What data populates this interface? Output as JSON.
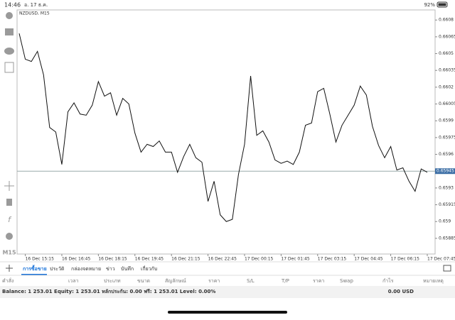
{
  "status_bar": {
    "time": "14:46",
    "date": "อ. 17 ธ.ค.",
    "battery": "92%"
  },
  "toolbar": {
    "timeframe": "M15"
  },
  "chart_data": {
    "type": "line",
    "title": "NZDUSD, M15",
    "color": "#111111",
    "categories": [
      null,
      "16 Dec 15:15",
      null,
      null,
      null,
      null,
      null,
      "16 Dec 16:45",
      null,
      null,
      null,
      null,
      null,
      "16 Dec 18:15",
      null,
      null,
      null,
      null,
      null,
      "16 Dec 19:45",
      null,
      null,
      null,
      null,
      null,
      "16 Dec 21:15",
      null,
      null,
      null,
      null,
      null,
      "16 Dec 22:45",
      null,
      null,
      null,
      null,
      null,
      "17 Dec 00:15",
      null,
      null,
      null,
      null,
      null,
      "17 Dec 01:45",
      null,
      null,
      null,
      null,
      null,
      "17 Dec 03:15",
      null,
      null,
      null,
      null,
      null,
      "17 Dec 04:45",
      null,
      null,
      null,
      null,
      null,
      "17 Dec 06:15",
      null,
      null,
      null,
      null,
      null,
      "17 Dec 07:45"
    ],
    "values": [
      0.66068,
      0.66045,
      0.66043,
      0.66052,
      0.66031,
      0.65984,
      0.6598,
      0.65951,
      0.65998,
      0.66006,
      0.65996,
      0.65995,
      0.66004,
      0.66025,
      0.66012,
      0.66015,
      0.65995,
      0.6601,
      0.66005,
      0.65979,
      0.65962,
      0.65969,
      0.65967,
      0.65972,
      0.65962,
      0.65962,
      0.65944,
      0.65958,
      0.65969,
      0.65957,
      0.65953,
      0.65918,
      0.65936,
      0.65906,
      0.659,
      0.65902,
      0.65942,
      0.65969,
      0.6603,
      0.65977,
      0.65981,
      0.65971,
      0.65955,
      0.65952,
      0.65954,
      0.65951,
      0.65962,
      0.65986,
      0.65988,
      0.66016,
      0.66019,
      0.65996,
      0.65971,
      0.65986,
      0.65995,
      0.66004,
      0.66021,
      0.66013,
      0.65985,
      0.65968,
      0.65957,
      0.65967,
      0.65946,
      0.65948,
      0.65936,
      0.65927,
      0.65947,
      0.65944
    ],
    "ylim": [
      0.65871,
      0.66089
    ],
    "yticks": [
      0.65885,
      0.659,
      0.65915,
      0.6593,
      0.65945,
      0.6596,
      0.65975,
      0.6599,
      0.66005,
      0.6602,
      0.66035,
      0.6605,
      0.66065,
      0.6608
    ],
    "current_price": 0.65945
  },
  "tabs": [
    "การซื้อขาย",
    "ประวัติ",
    "กล่องจดหมาย",
    "ข่าว",
    "บันทึก",
    "เกี่ยวกับ"
  ],
  "columns": [
    "คำสั่ง",
    "เวลา",
    "ประเภท",
    "ขนาด",
    "สัญลักษณ์",
    "ราคา",
    "S/L",
    "T/P",
    "ราคา",
    "Swap",
    "กำไร",
    "หมายเหตุ"
  ],
  "summary": {
    "text": "Balance: 1 253.01 Equity: 1 253.01 หลักประกัน: 0.00 ฟรี: 1 253.01 Level: 0.00%",
    "total": "0.00 USD"
  }
}
